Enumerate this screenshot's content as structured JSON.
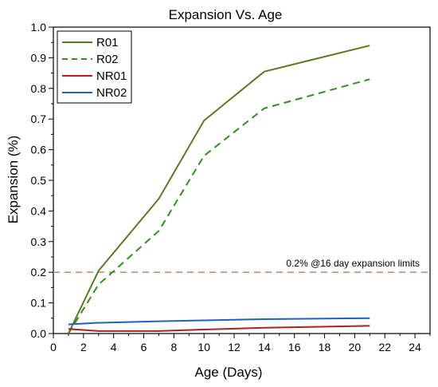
{
  "chart_data": {
    "type": "line",
    "title": "Expansion Vs. Age",
    "xlabel": "Age (Days)",
    "ylabel": "Expansion (%)",
    "xlim": [
      0,
      25
    ],
    "ylim": [
      0,
      1.0
    ],
    "xticks": [
      0,
      2,
      4,
      6,
      8,
      10,
      12,
      14,
      16,
      18,
      20,
      22,
      24
    ],
    "yticks": [
      0.0,
      0.1,
      0.2,
      0.3,
      0.4,
      0.5,
      0.6,
      0.7,
      0.8,
      0.9,
      1.0
    ],
    "grid": false,
    "legend_position": "top-left",
    "series": [
      {
        "name": "R01",
        "color": "#5a7a1e",
        "dash": "solid",
        "x": [
          1,
          3,
          7,
          10,
          14,
          21
        ],
        "y": [
          0.0,
          0.205,
          0.44,
          0.695,
          0.855,
          0.94
        ]
      },
      {
        "name": "R02",
        "color": "#2f8f1f",
        "dash": "dashed",
        "x": [
          1,
          3,
          7,
          10,
          14,
          21
        ],
        "y": [
          0.0,
          0.16,
          0.335,
          0.58,
          0.735,
          0.83
        ]
      },
      {
        "name": "NR01",
        "color": "#b02020",
        "dash": "solid",
        "x": [
          1,
          3,
          7,
          10,
          14,
          21
        ],
        "y": [
          0.015,
          0.008,
          0.008,
          0.013,
          0.019,
          0.025
        ]
      },
      {
        "name": "NR02",
        "color": "#2060c0",
        "dash": "solid",
        "x": [
          1,
          3,
          7,
          10,
          14,
          21
        ],
        "y": [
          0.03,
          0.035,
          0.04,
          0.043,
          0.047,
          0.05
        ]
      }
    ],
    "reference_line": {
      "y": 0.2,
      "color": "#c87860",
      "dash": "dashed",
      "label": "0.2% @16 day  expansion limits"
    }
  }
}
